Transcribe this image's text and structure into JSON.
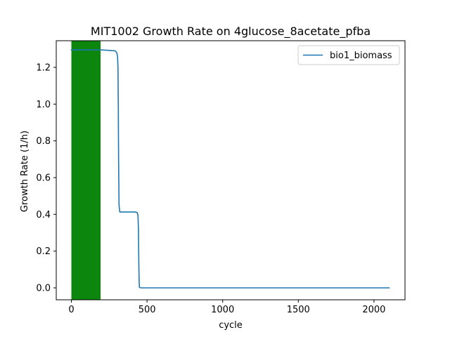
{
  "chart_data": {
    "type": "line",
    "title": "MIT1002 Growth Rate on 4glucose_8acetate_pfba",
    "xlabel": "cycle",
    "ylabel": "Growth Rate (1/h)",
    "xlim": [
      -100,
      2205
    ],
    "ylim": [
      -0.065,
      1.345
    ],
    "xticks": [
      0,
      500,
      1000,
      1500,
      2000
    ],
    "yticks": [
      0.0,
      0.2,
      0.4,
      0.6,
      0.8,
      1.0,
      1.2
    ],
    "xtick_labels": [
      "0",
      "500",
      "1000",
      "1500",
      "2000"
    ],
    "ytick_labels": [
      "0.0",
      "0.2",
      "0.4",
      "0.6",
      "0.8",
      "1.0",
      "1.2"
    ],
    "grid": false,
    "legend_position": "top-right",
    "shaded_regions": [
      {
        "x_start": 0,
        "x_end": 193,
        "color": "#008000"
      }
    ],
    "series": [
      {
        "name": "bio1_biomass",
        "color": "#1f77b4",
        "x": [
          0,
          200,
          290,
          300,
          305,
          308,
          310,
          312,
          315,
          320,
          330,
          420,
          435,
          440,
          443,
          446,
          448,
          450,
          460,
          2100
        ],
        "y": [
          1.295,
          1.295,
          1.29,
          1.28,
          1.26,
          1.2,
          1.0,
          0.7,
          0.45,
          0.413,
          0.413,
          0.413,
          0.41,
          0.395,
          0.33,
          0.12,
          0.03,
          0.002,
          0.0,
          0.0
        ]
      }
    ]
  }
}
